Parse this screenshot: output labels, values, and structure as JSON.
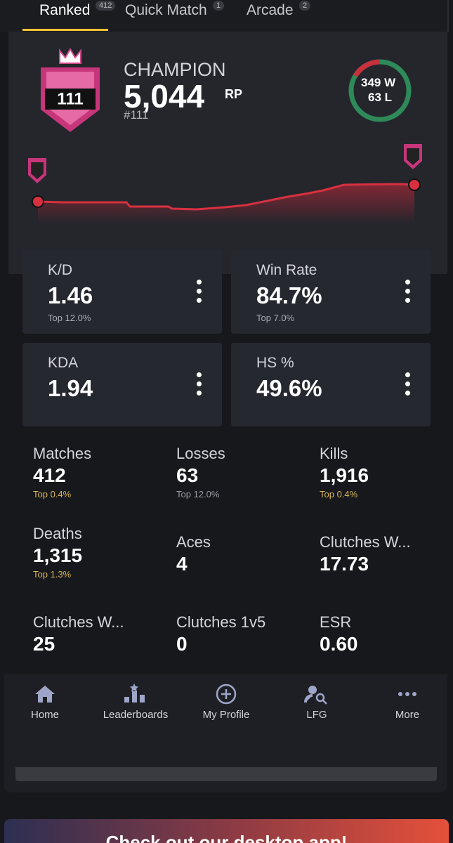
{
  "tabs": [
    {
      "label": "Ranked",
      "badge": "412"
    },
    {
      "label": "Quick Match",
      "badge": "1"
    },
    {
      "label": "Arcade",
      "badge": "2"
    }
  ],
  "rank": {
    "title": "CHAMPION",
    "rp": "5,044",
    "rp_unit": "RP",
    "position": "#111",
    "badge_number": "111",
    "wins": "349 W",
    "losses": "63 L"
  },
  "cards": [
    {
      "label": "K/D",
      "value": "1.46",
      "note": "Top 12.0%"
    },
    {
      "label": "Win Rate",
      "value": "84.7%",
      "note": "Top 7.0%"
    },
    {
      "label": "KDA",
      "value": "1.94"
    },
    {
      "label": "HS %",
      "value": "49.6%"
    }
  ],
  "stats": [
    {
      "label": "Matches",
      "value": "412",
      "note": "Top 0.4%",
      "note_color": "#d9b65a"
    },
    {
      "label": "Losses",
      "value": "63",
      "note": "Top 12.0%",
      "note_color": "#9a9ca3"
    },
    {
      "label": "Kills",
      "value": "1,916",
      "note": "Top 0.4%",
      "note_color": "#d9b65a"
    },
    {
      "label": "Deaths",
      "value": "1,315",
      "note": "Top 1.3%",
      "note_color": "#d9b65a"
    },
    {
      "label": "Aces",
      "value": "4"
    },
    {
      "label": "Clutches W...",
      "value": "17.73"
    },
    {
      "label": "Clutches W...",
      "value": "25"
    },
    {
      "label": "Clutches 1v5",
      "value": "0"
    },
    {
      "label": "ESR",
      "value": "0.60"
    }
  ],
  "nav": [
    "Home",
    "Leaderboards",
    "My Profile",
    "LFG",
    "More"
  ],
  "banner": "Check out our desktop app!"
}
